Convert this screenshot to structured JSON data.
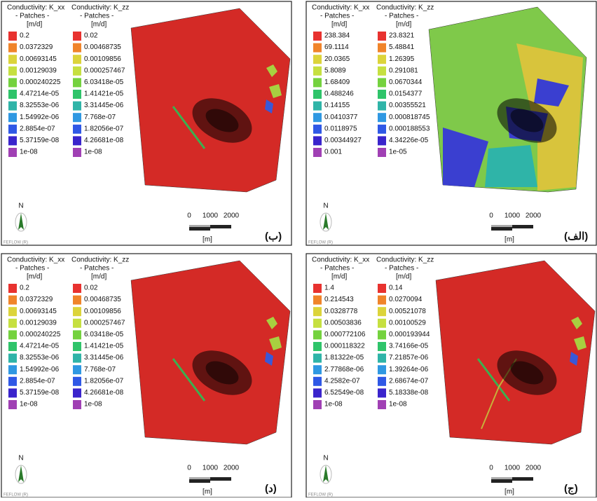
{
  "header_text": [
    "Conductivity: K_xx",
    "Conductivity: K_zz",
    "- Patches -",
    "[m/d]"
  ],
  "scale_labels": [
    "0",
    "1000",
    "2000",
    "[m]"
  ],
  "north": "N",
  "software": "FEFLOW (R)",
  "panels": [
    {
      "label": "(ب)",
      "kxx": [
        "0.2",
        "0.0372329",
        "0.00693145",
        "0.00129039",
        "0.000240225",
        "4.47214e-05",
        "8.32553e-06",
        "1.54992e-06",
        "2.8854e-07",
        "5.37159e-08",
        "1e-08"
      ],
      "kzz": [
        "0.02",
        "0.00468735",
        "0.00109856",
        "0.000257467",
        "6.03418e-05",
        "1.41421e-05",
        "3.31445e-06",
        "7.768e-07",
        "1.82056e-07",
        "4.26681e-08",
        "1e-08"
      ]
    },
    {
      "label": "(الف)",
      "kxx": [
        "238.384",
        "69.1114",
        "20.0365",
        "5.8089",
        "1.68409",
        "0.488246",
        "0.14155",
        "0.0410377",
        "0.0118975",
        "0.00344927",
        "0.001"
      ],
      "kzz": [
        "23.8321",
        "5.48841",
        "1.26395",
        "0.291081",
        "0.0670344",
        "0.0154377",
        "0.00355521",
        "0.000818745",
        "0.000188553",
        "4.34226e-05",
        "1e-05"
      ]
    },
    {
      "label": "(د)",
      "kxx": [
        "0.2",
        "0.0372329",
        "0.00693145",
        "0.00129039",
        "0.000240225",
        "4.47214e-05",
        "8.32553e-06",
        "1.54992e-06",
        "2.8854e-07",
        "5.37159e-08",
        "1e-08"
      ],
      "kzz": [
        "0.02",
        "0.00468735",
        "0.00109856",
        "0.000257467",
        "6.03418e-05",
        "1.41421e-05",
        "3.31445e-06",
        "7.768e-07",
        "1.82056e-07",
        "4.26681e-08",
        "1e-08"
      ]
    },
    {
      "label": "(ج)",
      "kxx": [
        "1.4",
        "0.214543",
        "0.0328778",
        "0.00503836",
        "0.000772106",
        "0.000118322",
        "1.81322e-05",
        "2.77868e-06",
        "4.2582e-07",
        "6.52549e-08",
        "1e-08"
      ],
      "kzz": [
        "0.14",
        "0.0270094",
        "0.00521078",
        "0.00100529",
        "0.000193944",
        "3.74166e-05",
        "7.21857e-06",
        "1.39264e-06",
        "2.68674e-07",
        "5.18338e-08",
        "1e-08"
      ]
    }
  ]
}
